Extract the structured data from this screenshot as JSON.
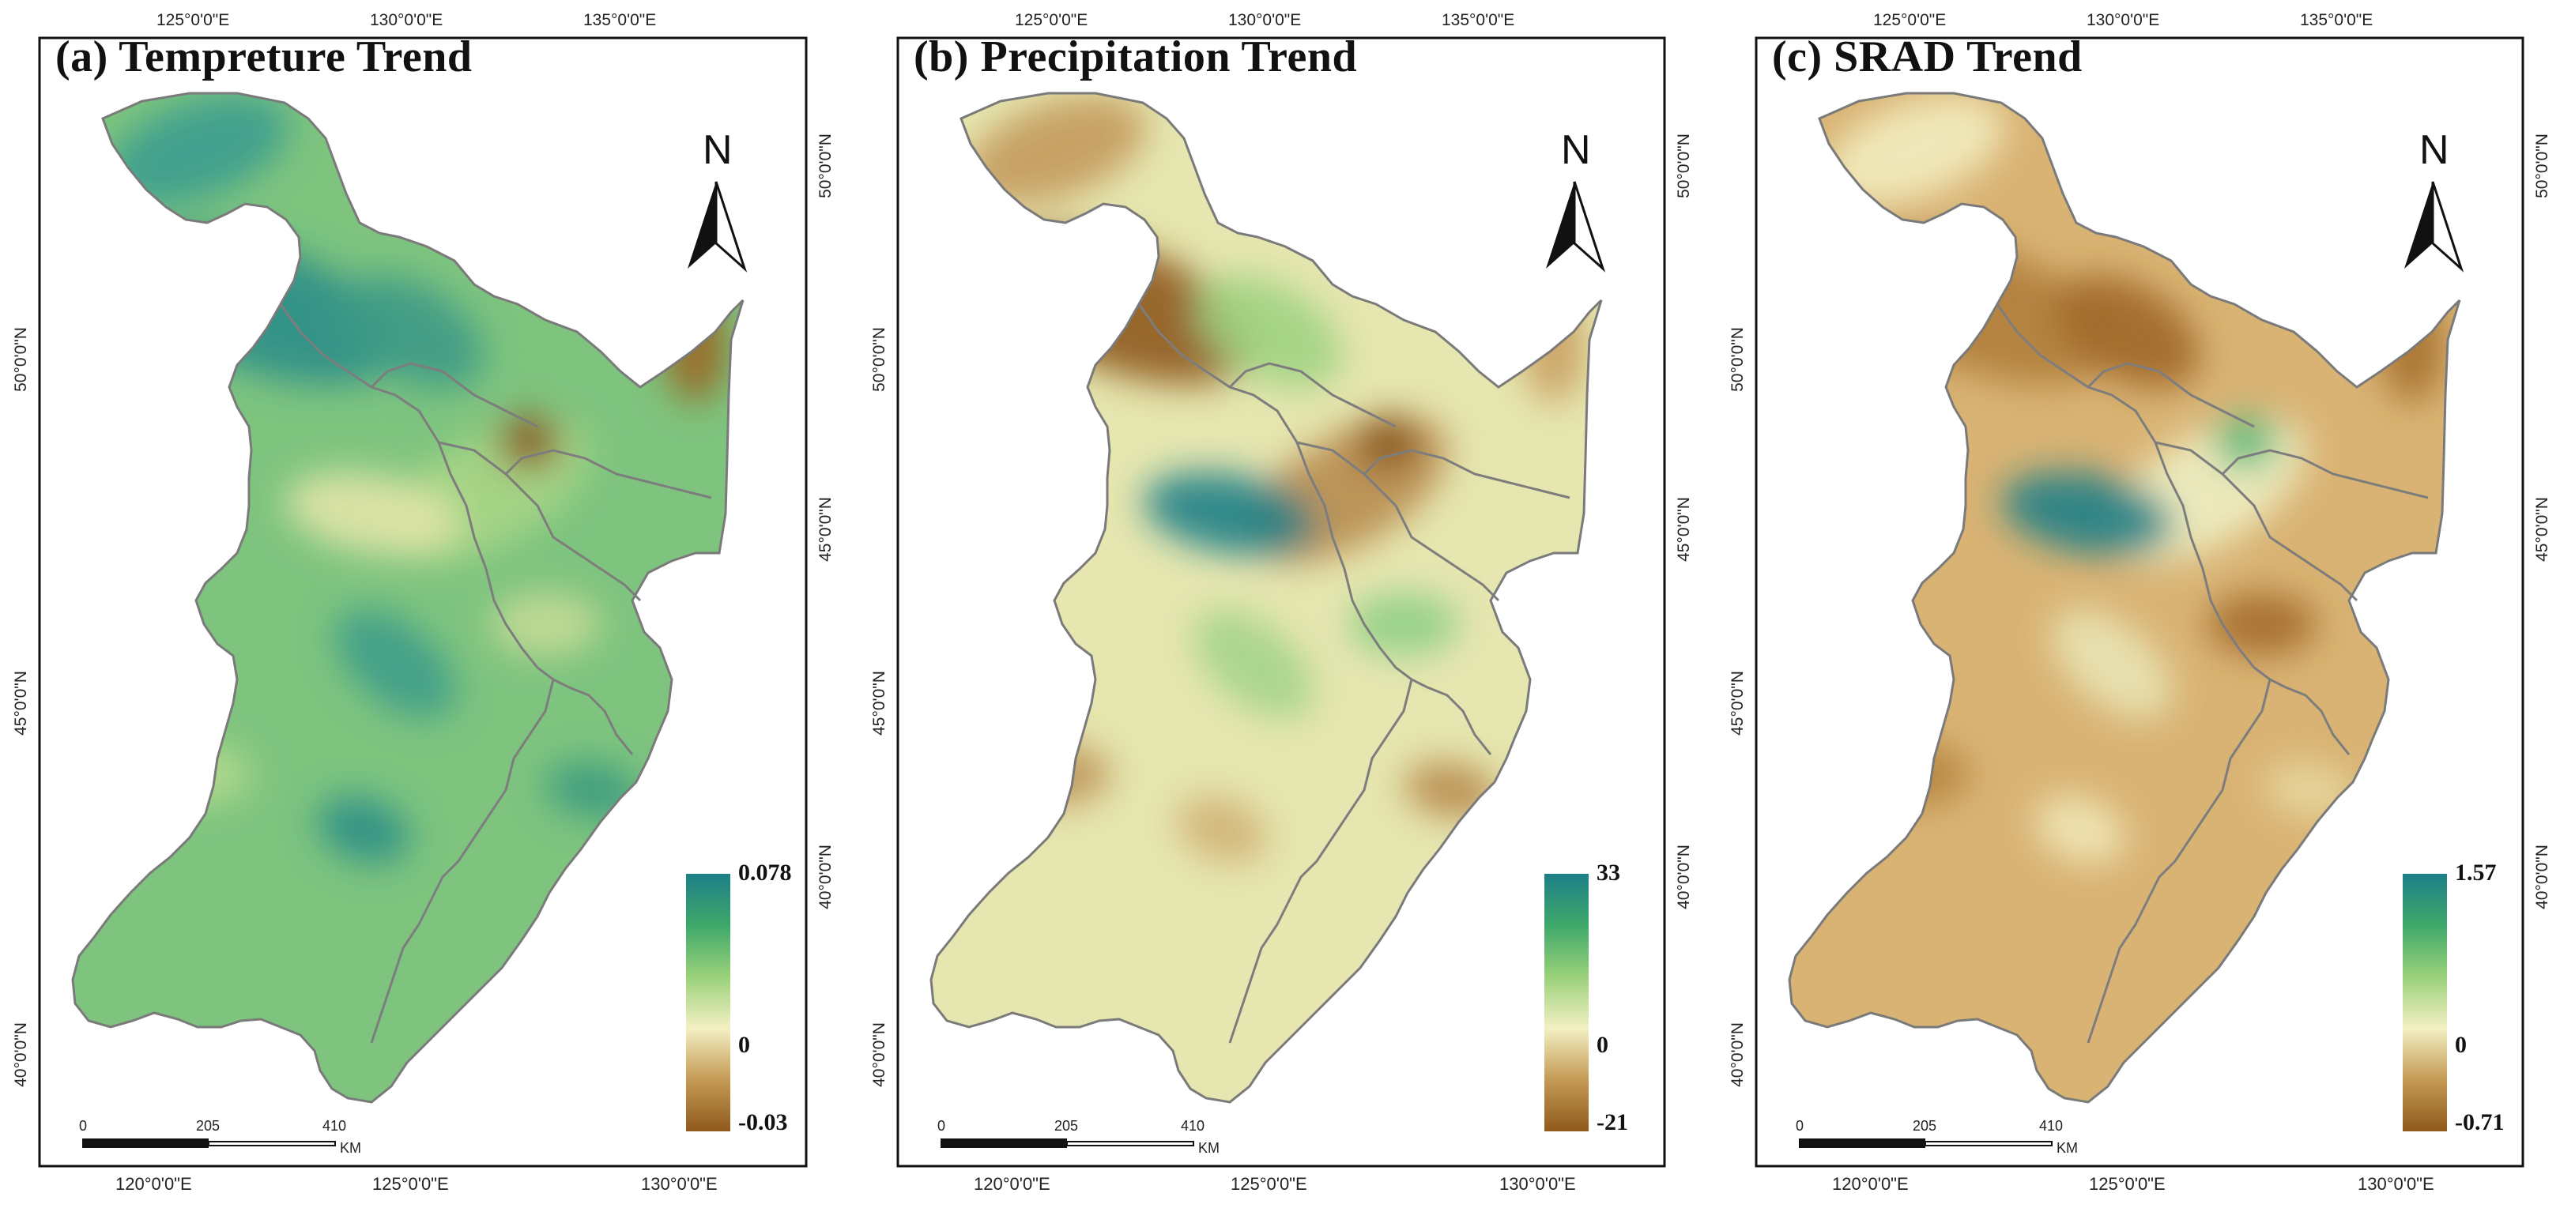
{
  "panels": [
    {
      "title": "(a) Tempreture Trend",
      "legend": {
        "max": "0.078",
        "zero": "0",
        "min": "-0.03"
      },
      "ramp": [
        "#1d7f87",
        "#3ea86a",
        "#9ad17a",
        "#f3f0c4",
        "#c49a54",
        "#8f5a1c"
      ],
      "fill": "#7ec47f",
      "blobs": [
        {
          "c": "#3b9c8f"
        },
        {
          "c": "#2e8e88"
        },
        {
          "c": "#3d9a86"
        },
        {
          "c": "#a8d586"
        },
        {
          "c": "#e3e6a8"
        },
        {
          "c": "#8b5a23"
        },
        {
          "c": "#9a6626"
        },
        {
          "c": "#3f9c8a"
        },
        {
          "c": "#b3d98d"
        },
        {
          "c": "#2f8f86"
        },
        {
          "c": "#c8dc97"
        },
        {
          "c": "#3a9a80"
        }
      ]
    },
    {
      "title": "(b) Precipitation Trend",
      "legend": {
        "max": "33",
        "zero": "0",
        "min": "-21"
      },
      "ramp": [
        "#1d7f87",
        "#3ea86a",
        "#9ad17a",
        "#f3f0c4",
        "#c49a54",
        "#8f5a1c"
      ],
      "fill": "#e6e6b0",
      "blobs": [
        {
          "c": "#c39a5c"
        },
        {
          "c": "#8f5a1c"
        },
        {
          "c": "#9ed382"
        },
        {
          "c": "#b88c4f"
        },
        {
          "c": "#1d7f87"
        },
        {
          "c": "#8a561c"
        },
        {
          "c": "#c9a062"
        },
        {
          "c": "#a4d48a"
        },
        {
          "c": "#bf955a"
        },
        {
          "c": "#d0b277"
        },
        {
          "c": "#8fcf85"
        },
        {
          "c": "#b7894c"
        }
      ]
    },
    {
      "title": "(c) SRAD Trend",
      "legend": {
        "max": "1.57",
        "zero": "0",
        "min": "-0.71"
      },
      "ramp": [
        "#1d7f87",
        "#3ea86a",
        "#9ad17a",
        "#f3f0c4",
        "#c49a54",
        "#8f5a1c"
      ],
      "fill": "#d9b374",
      "blobs": [
        {
          "c": "#f2edc0"
        },
        {
          "c": "#b07e3c"
        },
        {
          "c": "#a0672a"
        },
        {
          "c": "#eef0c4"
        },
        {
          "c": "#1d7f87"
        },
        {
          "c": "#5db87a"
        },
        {
          "c": "#a5702f"
        },
        {
          "c": "#e9e6b6"
        },
        {
          "c": "#b5843f"
        },
        {
          "c": "#f0e8b8"
        },
        {
          "c": "#a46c2b"
        },
        {
          "c": "#e7d79f"
        }
      ]
    }
  ],
  "axes": {
    "top_lon": [
      "125°0'0\"E",
      "130°0'0\"E",
      "135°0'0\"E"
    ],
    "bottom_lon": [
      "120°0'0\"E",
      "125°0'0\"E",
      "130°0'0\"E"
    ],
    "left_lat": [
      "50°0'0\"N",
      "45°0'0\"N",
      "40°0'0\"N"
    ],
    "right_lat": [
      "50°0'0\"N",
      "45°0'0\"N",
      "40°0'0\"N"
    ]
  },
  "north_arrow": {
    "letter": "N"
  },
  "scale_bar": {
    "labels": [
      "0",
      "205",
      "410"
    ],
    "unit": "KM"
  }
}
